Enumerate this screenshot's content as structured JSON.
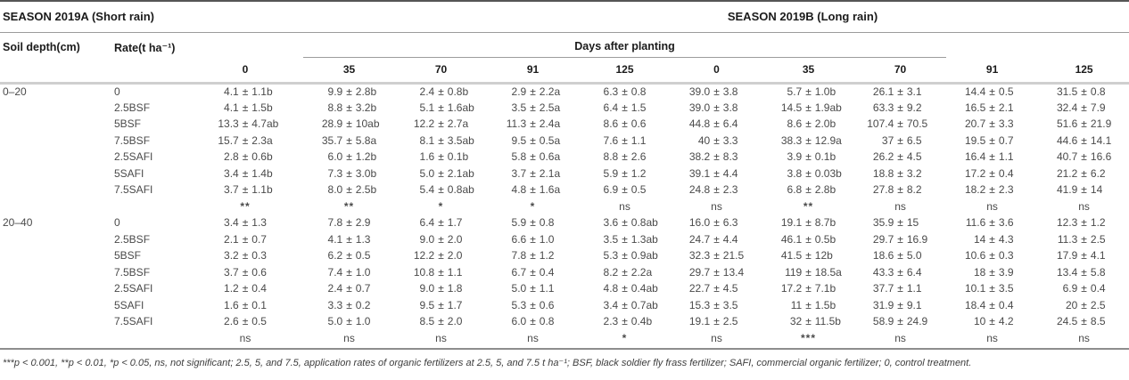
{
  "table": {
    "season_a_header": "SEASON 2019A (Short rain)",
    "season_b_header": "SEASON 2019B (Long rain)",
    "soil_depth_header": "Soil depth(cm)",
    "rate_header": "Rate(t ha⁻¹)",
    "days_header": "Days after planting",
    "day_columns": [
      "0",
      "35",
      "70",
      "91",
      "125",
      "0",
      "35",
      "70",
      "91",
      "125"
    ],
    "groups": [
      {
        "depth": "0–20",
        "rows": [
          {
            "rate": "0",
            "values": [
              "4.1 ± 1.1b",
              "9.9 ± 2.8b",
              "2.4 ± 0.8b",
              "2.9 ± 2.2a",
              "6.3 ± 0.8",
              "39.0 ± 3.8",
              "5.7 ± 1.0b",
              "26.1 ± 3.1",
              "14.4 ± 0.5",
              "31.5 ± 0.8"
            ]
          },
          {
            "rate": "2.5BSF",
            "values": [
              "4.1 ± 1.5b",
              "8.8 ± 3.2b",
              "5.1 ± 1.6ab",
              "3.5 ± 2.5a",
              "6.4 ± 1.5",
              "39.0 ± 3.8",
              "14.5 ± 1.9ab",
              "63.3 ± 9.2",
              "16.5 ± 2.1",
              "32.4 ± 7.9"
            ]
          },
          {
            "rate": "5BSF",
            "values": [
              "13.3 ± 4.7ab",
              "28.9 ± 10ab",
              "12.2 ± 2.7a",
              "11.3 ± 2.4a",
              "8.6 ± 0.6",
              "44.8 ± 6.4",
              "8.6 ± 2.0b",
              "107.4 ± 70.5",
              "20.7 ± 3.3",
              "51.6 ± 21.9"
            ]
          },
          {
            "rate": "7.5BSF",
            "values": [
              "15.7 ± 2.3a",
              "35.7 ± 5.8a",
              "8.1 ± 3.5ab",
              "9.5 ± 0.5a",
              "7.6 ± 1.1",
              "40 ± 3.3",
              "38.3 ± 12.9a",
              "37 ± 6.5",
              "19.5 ± 0.7",
              "44.6 ± 14.1"
            ]
          },
          {
            "rate": "2.5SAFI",
            "values": [
              "2.8 ± 0.6b",
              "6.0 ± 1.2b",
              "1.6 ± 0.1b",
              "5.8 ± 0.6a",
              "8.8 ± 2.6",
              "38.2 ± 8.3",
              "3.9 ± 0.1b",
              "26.2 ± 4.5",
              "16.4 ± 1.1",
              "40.7 ± 16.6"
            ]
          },
          {
            "rate": "5SAFI",
            "values": [
              "3.4 ± 1.4b",
              "7.3 ± 3.0b",
              "5.0 ± 2.1ab",
              "3.7 ± 2.1a",
              "5.9 ± 1.2",
              "39.1 ± 4.4",
              "3.8 ± 0.03b",
              "18.8 ± 3.2",
              "17.2 ± 0.4",
              "21.2 ± 6.2"
            ]
          },
          {
            "rate": "7.5SAFI",
            "values": [
              "3.7 ± 1.1b",
              "8.0 ± 2.5b",
              "5.4 ± 0.8ab",
              "4.8 ± 1.6a",
              "6.9 ± 0.5",
              "24.8 ± 2.3",
              "6.8 ± 2.8b",
              "27.8 ± 8.2",
              "18.2 ± 2.3",
              "41.9 ± 14"
            ]
          }
        ],
        "significance": [
          "**",
          "**",
          "*",
          "*",
          "ns",
          "ns",
          "**",
          "ns",
          "ns",
          "ns"
        ]
      },
      {
        "depth": "20–40",
        "rows": [
          {
            "rate": "0",
            "values": [
              "3.4 ± 1.3",
              "7.8 ± 2.9",
              "6.4 ± 1.7",
              "5.9 ± 0.8",
              "3.6 ± 0.8ab",
              "16.0 ± 6.3",
              "19.1 ± 8.7b",
              "35.9 ± 15",
              "11.6 ± 3.6",
              "12.3 ± 1.2"
            ]
          },
          {
            "rate": "2.5BSF",
            "values": [
              "2.1 ± 0.7",
              "4.1 ± 1.3",
              "9.0 ± 2.0",
              "6.6 ± 1.0",
              "3.5 ± 1.3ab",
              "24.7 ± 4.4",
              "46.1 ± 0.5b",
              "29.7 ± 16.9",
              "14 ± 4.3",
              "11.3 ± 2.5"
            ]
          },
          {
            "rate": "5BSF",
            "values": [
              "3.2 ± 0.3",
              "6.2 ± 0.5",
              "12.2 ± 2.0",
              "7.8 ± 1.2",
              "5.3 ± 0.9ab",
              "32.3 ± 21.5",
              "41.5 ± 12b",
              "18.6 ± 5.0",
              "10.6 ± 0.3",
              "17.9 ± 4.1"
            ]
          },
          {
            "rate": "7.5BSF",
            "values": [
              "3.7 ± 0.6",
              "7.4 ± 1.0",
              "10.8 ± 1.1",
              "6.7 ± 0.4",
              "8.2 ± 2.2a",
              "29.7 ± 13.4",
              "119 ± 18.5a",
              "43.3 ± 6.4",
              "18 ± 3.9",
              "13.4 ± 5.8"
            ]
          },
          {
            "rate": "2.5SAFI",
            "values": [
              "1.2 ± 0.4",
              "2.4 ± 0.7",
              "9.0 ± 1.8",
              "5.0 ± 1.1",
              "4.8 ± 0.4ab",
              "22.7 ± 4.5",
              "17.2 ± 7.1b",
              "37.7 ± 1.1",
              "10.1 ± 3.5",
              "6.9 ± 0.4"
            ]
          },
          {
            "rate": "5SAFI",
            "values": [
              "1.6 ± 0.1",
              "3.3 ± 0.2",
              "9.5 ± 1.7",
              "5.3 ± 0.6",
              "3.4 ± 0.7ab",
              "15.3 ± 3.5",
              "11 ± 1.5b",
              "31.9 ± 9.1",
              "18.4 ± 0.4",
              "20 ± 2.5"
            ]
          },
          {
            "rate": "7.5SAFI",
            "values": [
              "2.6 ± 0.5",
              "5.0 ± 1.0",
              "8.5 ± 2.0",
              "6.0 ± 0.8",
              "2.3 ± 0.4b",
              "19.1 ± 2.5",
              "32 ± 11.5b",
              "58.9 ± 24.9",
              "10 ± 4.2",
              "24.5 ± 8.5"
            ]
          }
        ],
        "significance": [
          "ns",
          "ns",
          "ns",
          "ns",
          "*",
          "ns",
          "***",
          "ns",
          "ns",
          "ns"
        ]
      }
    ],
    "footnote": "***p < 0.001, **p < 0.01, *p < 0.05, ns, not significant; 2.5, 5, and 7.5, application rates of organic fertilizers at 2.5, 5, and 7.5 t ha⁻¹; BSF, black soldier fly frass fertilizer; SAFI, commercial organic fertilizer; 0, control treatment."
  }
}
